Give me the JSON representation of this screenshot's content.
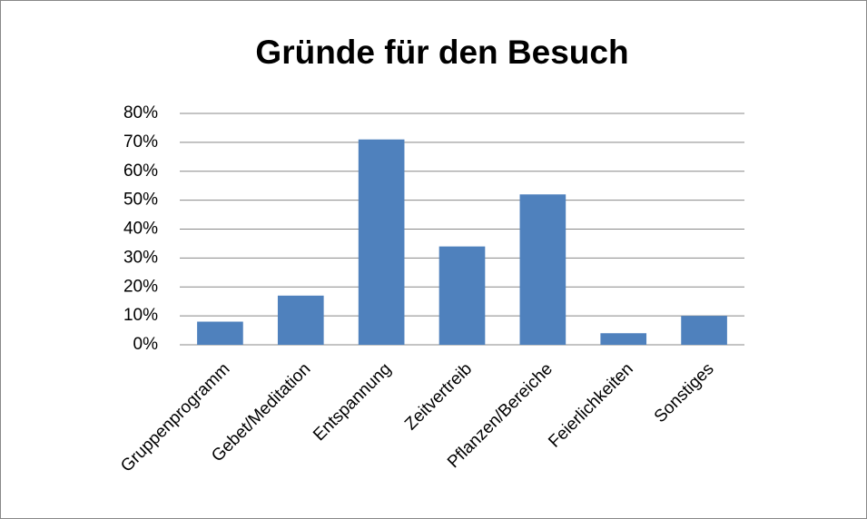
{
  "chart_data": {
    "type": "bar",
    "title": "Gründe für den Besuch",
    "categories": [
      "Gruppenprogramm",
      "Gebet/Meditation",
      "Entspannung",
      "Zeitvertreib",
      "Pflanzen/Bereiche",
      "Feierlichkeiten",
      "Sonstiges"
    ],
    "values": [
      8,
      17,
      71,
      34,
      52,
      4,
      10
    ],
    "color": "#4f81bd",
    "ylim": [
      0,
      80
    ],
    "yticks": [
      {
        "value": 0,
        "label": "0%"
      },
      {
        "value": 10,
        "label": "10%"
      },
      {
        "value": 20,
        "label": "20%"
      },
      {
        "value": 30,
        "label": "30%"
      },
      {
        "value": 40,
        "label": "40%"
      },
      {
        "value": 50,
        "label": "50%"
      },
      {
        "value": 60,
        "label": "60%"
      },
      {
        "value": 70,
        "label": "70%"
      },
      {
        "value": 80,
        "label": "80%"
      }
    ],
    "grid": true
  }
}
